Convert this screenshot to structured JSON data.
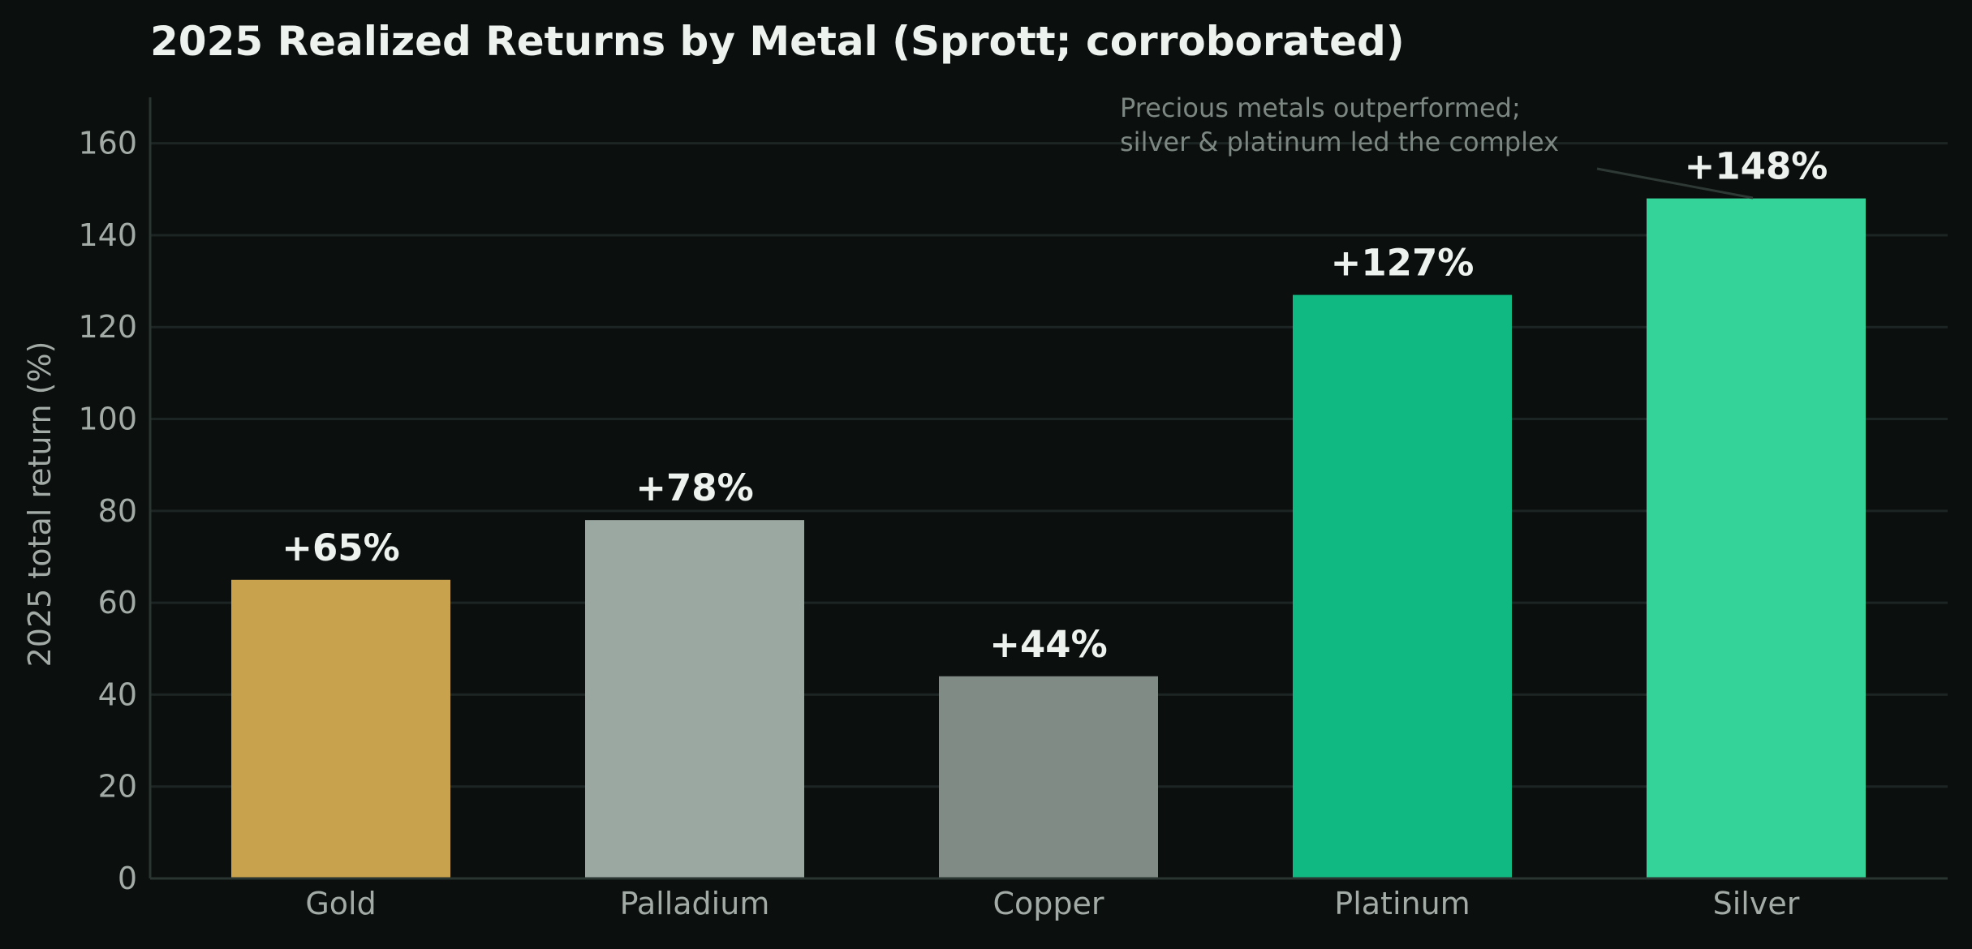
{
  "chart_data": {
    "type": "bar",
    "title": "2025 Realized Returns by Metal  (Sprott; corroborated)",
    "xlabel": "",
    "ylabel": "2025 total return (%)",
    "ylim": [
      0,
      170
    ],
    "yticks": [
      0,
      20,
      40,
      60,
      80,
      100,
      120,
      140,
      160
    ],
    "categories": [
      "Gold",
      "Palladium",
      "Copper",
      "Platinum",
      "Silver"
    ],
    "values": [
      65,
      78,
      44,
      127,
      148
    ],
    "data_labels": [
      "+65%",
      "+78%",
      "+44%",
      "+127%",
      "+148%"
    ],
    "colors": [
      "#c9a24d",
      "#9ba8a1",
      "#7f8b84",
      "#10b981",
      "#34d399"
    ],
    "grid": true,
    "legend": "none",
    "annotation": {
      "lines": [
        "Precious metals outperformed;",
        "silver & platinum led the complex"
      ],
      "points_to": "Silver"
    }
  }
}
